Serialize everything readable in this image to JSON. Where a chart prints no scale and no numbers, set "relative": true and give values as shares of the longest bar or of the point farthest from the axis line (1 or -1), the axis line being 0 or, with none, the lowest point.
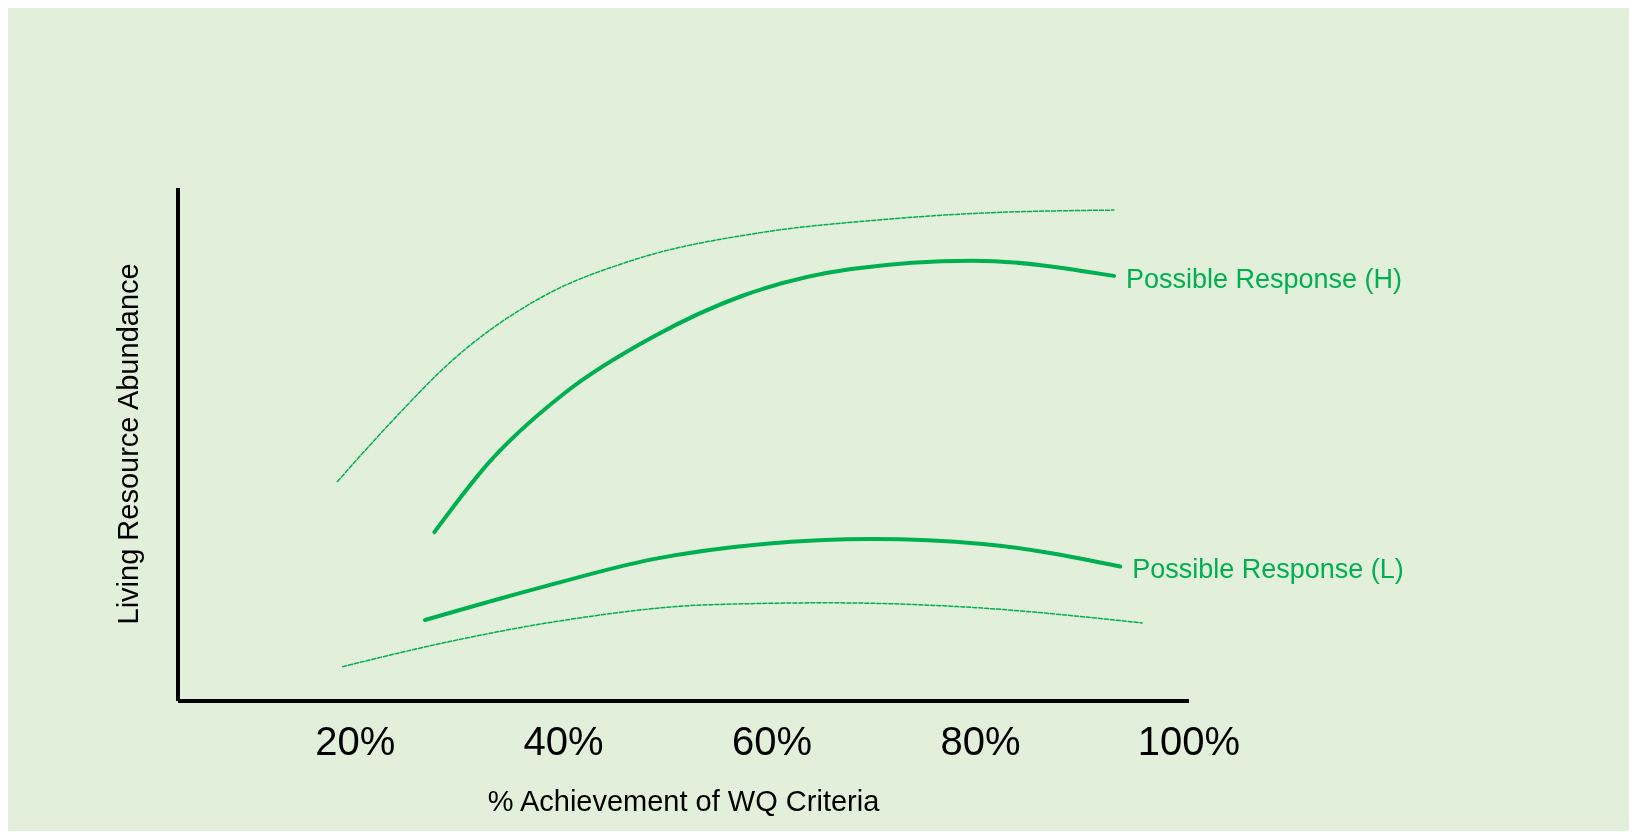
{
  "chart_data": {
    "type": "line",
    "xlabel": "% Achievement of WQ Criteria",
    "ylabel": "Living Resource Abundance",
    "relative": true,
    "xlim": [
      3,
      100
    ],
    "xticks": [
      {
        "value": 20,
        "label": "20%"
      },
      {
        "value": 40,
        "label": "40%"
      },
      {
        "value": 60,
        "label": "60%"
      },
      {
        "value": 80,
        "label": "80%"
      },
      {
        "value": 100,
        "label": "100%"
      }
    ],
    "grid": false,
    "legend": false,
    "marker": "none",
    "series": [
      {
        "color": "#00b050",
        "line_style": "dashed",
        "x": [
          18.3,
          23.4,
          29.7,
          38.1,
          46.5,
          59.2,
          69.7,
          80.2,
          92.8
        ],
        "values": [
          0.447,
          0.567,
          0.701,
          0.825,
          0.897,
          0.955,
          0.979,
          0.994,
          1
        ]
      },
      {
        "name": "Possible Response (H)",
        "color": "#00b050",
        "line_style": "solid",
        "x": [
          27.6,
          32.8,
          40.2,
          48.6,
          57.1,
          67.6,
          79.2,
          92.8
        ],
        "values": [
          0.344,
          0.485,
          0.629,
          0.742,
          0.825,
          0.88,
          0.897,
          0.866
        ]
      },
      {
        "name": "Possible Response (L)",
        "color": "#00b050",
        "line_style": "solid",
        "x": [
          26.7,
          38.1,
          48.6,
          59.2,
          69.7,
          80.2,
          93.4
        ],
        "values": [
          0.165,
          0.233,
          0.289,
          0.32,
          0.33,
          0.32,
          0.274
        ]
      },
      {
        "color": "#00b050",
        "line_style": "dashed",
        "x": [
          18.8,
          29.7,
          40.2,
          53.9,
          65.5,
          78.1,
          95.5
        ],
        "values": [
          0.07,
          0.124,
          0.165,
          0.196,
          0.2,
          0.192,
          0.159
        ]
      }
    ]
  }
}
